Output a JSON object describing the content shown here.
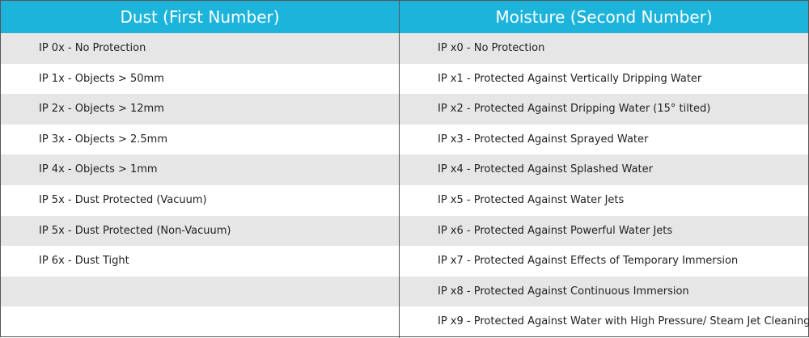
{
  "table": {
    "headers": [
      "Dust (First Number)",
      "Moisture (Second Number)"
    ],
    "dust": [
      "IP 0x - No Protection",
      "IP 1x - Objects > 50mm",
      "IP 2x - Objects > 12mm",
      "IP 3x - Objects > 2.5mm",
      "IP 4x - Objects > 1mm",
      "IP 5x - Dust Protected (Vacuum)",
      "IP 5x - Dust Protected (Non-Vacuum)",
      "IP 6x - Dust Tight"
    ],
    "moisture": [
      "IP x0 - No Protection",
      "IP x1 - Protected Against Vertically Dripping Water",
      "IP x2 - Protected Against Dripping Water (15° tilted)",
      "IP x3 - Protected Against Sprayed Water",
      "IP x4 - Protected Against Splashed Water",
      "IP x5 - Protected Against Water Jets",
      "IP x6 - Protected Against Powerful Water Jets",
      "IP x7 - Protected Against Effects of Temporary Immersion",
      "IP x8 - Protected Against Continuous Immersion",
      "IP x9 - Protected Against Water with High Pressure/ Steam Jet Cleaning"
    ]
  }
}
